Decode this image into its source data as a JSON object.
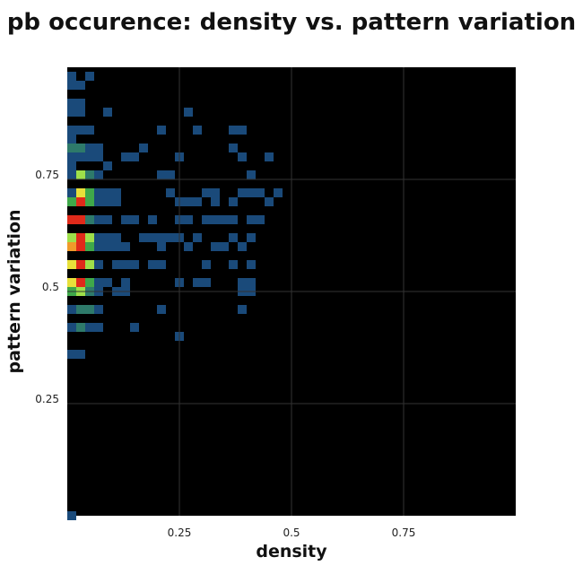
{
  "chart_data": {
    "type": "heatmap",
    "title": "pb occurence: density vs. pattern variation",
    "xlabel": "density",
    "ylabel": "pattern variation",
    "xlim": [
      0,
      1
    ],
    "ylim": [
      0,
      1
    ],
    "x_ticks": [
      {
        "value": 0.25,
        "label": "0.25"
      },
      {
        "value": 0.5,
        "label": "0.5"
      },
      {
        "value": 0.75,
        "label": "0.75"
      }
    ],
    "y_ticks": [
      {
        "value": 0.25,
        "label": "0.25"
      },
      {
        "value": 0.5,
        "label": "0.5"
      },
      {
        "value": 0.75,
        "label": "0.75"
      }
    ],
    "grid": true,
    "bin_width": 0.02,
    "bin_height": 0.02,
    "background_color": "#000000",
    "color_scale": [
      "#0e2a5c",
      "#1a4a7a",
      "#2e7a6a",
      "#3fa84a",
      "#9ee04a",
      "#e8e03a",
      "#f09a2a",
      "#e02a1a"
    ],
    "cells": [
      {
        "x": 0.0,
        "y": 0.99,
        "v": 1
      },
      {
        "x": 0.04,
        "y": 0.99,
        "v": 1
      },
      {
        "x": 0.0,
        "y": 0.97,
        "v": 1
      },
      {
        "x": 0.02,
        "y": 0.97,
        "v": 1
      },
      {
        "x": 0.0,
        "y": 0.93,
        "v": 1
      },
      {
        "x": 0.02,
        "y": 0.93,
        "v": 1
      },
      {
        "x": 0.0,
        "y": 0.91,
        "v": 1
      },
      {
        "x": 0.02,
        "y": 0.91,
        "v": 1
      },
      {
        "x": 0.08,
        "y": 0.91,
        "v": 1
      },
      {
        "x": 0.26,
        "y": 0.91,
        "v": 1
      },
      {
        "x": 0.0,
        "y": 0.87,
        "v": 1
      },
      {
        "x": 0.02,
        "y": 0.87,
        "v": 1
      },
      {
        "x": 0.04,
        "y": 0.87,
        "v": 1
      },
      {
        "x": 0.2,
        "y": 0.87,
        "v": 1
      },
      {
        "x": 0.28,
        "y": 0.87,
        "v": 1
      },
      {
        "x": 0.36,
        "y": 0.87,
        "v": 1
      },
      {
        "x": 0.38,
        "y": 0.87,
        "v": 1
      },
      {
        "x": 0.0,
        "y": 0.85,
        "v": 1
      },
      {
        "x": 0.0,
        "y": 0.83,
        "v": 2
      },
      {
        "x": 0.02,
        "y": 0.83,
        "v": 2
      },
      {
        "x": 0.04,
        "y": 0.83,
        "v": 1
      },
      {
        "x": 0.06,
        "y": 0.83,
        "v": 1
      },
      {
        "x": 0.16,
        "y": 0.83,
        "v": 1
      },
      {
        "x": 0.36,
        "y": 0.83,
        "v": 1
      },
      {
        "x": 0.0,
        "y": 0.81,
        "v": 1
      },
      {
        "x": 0.02,
        "y": 0.81,
        "v": 1
      },
      {
        "x": 0.04,
        "y": 0.81,
        "v": 1
      },
      {
        "x": 0.06,
        "y": 0.81,
        "v": 1
      },
      {
        "x": 0.12,
        "y": 0.81,
        "v": 1
      },
      {
        "x": 0.14,
        "y": 0.81,
        "v": 1
      },
      {
        "x": 0.24,
        "y": 0.81,
        "v": 1
      },
      {
        "x": 0.38,
        "y": 0.81,
        "v": 1
      },
      {
        "x": 0.44,
        "y": 0.81,
        "v": 1
      },
      {
        "x": 0.0,
        "y": 0.79,
        "v": 1
      },
      {
        "x": 0.08,
        "y": 0.79,
        "v": 1
      },
      {
        "x": 0.0,
        "y": 0.77,
        "v": 1
      },
      {
        "x": 0.02,
        "y": 0.77,
        "v": 4
      },
      {
        "x": 0.04,
        "y": 0.77,
        "v": 2
      },
      {
        "x": 0.06,
        "y": 0.77,
        "v": 1
      },
      {
        "x": 0.2,
        "y": 0.77,
        "v": 1
      },
      {
        "x": 0.22,
        "y": 0.77,
        "v": 1
      },
      {
        "x": 0.4,
        "y": 0.77,
        "v": 1
      },
      {
        "x": 0.0,
        "y": 0.73,
        "v": 1
      },
      {
        "x": 0.02,
        "y": 0.73,
        "v": 5
      },
      {
        "x": 0.04,
        "y": 0.73,
        "v": 3
      },
      {
        "x": 0.06,
        "y": 0.73,
        "v": 1
      },
      {
        "x": 0.08,
        "y": 0.73,
        "v": 1
      },
      {
        "x": 0.1,
        "y": 0.73,
        "v": 1
      },
      {
        "x": 0.22,
        "y": 0.73,
        "v": 1
      },
      {
        "x": 0.3,
        "y": 0.73,
        "v": 1
      },
      {
        "x": 0.32,
        "y": 0.73,
        "v": 1
      },
      {
        "x": 0.38,
        "y": 0.73,
        "v": 1
      },
      {
        "x": 0.4,
        "y": 0.73,
        "v": 1
      },
      {
        "x": 0.42,
        "y": 0.73,
        "v": 1
      },
      {
        "x": 0.46,
        "y": 0.73,
        "v": 1
      },
      {
        "x": 0.0,
        "y": 0.71,
        "v": 3
      },
      {
        "x": 0.02,
        "y": 0.71,
        "v": 7
      },
      {
        "x": 0.04,
        "y": 0.71,
        "v": 3
      },
      {
        "x": 0.06,
        "y": 0.71,
        "v": 1
      },
      {
        "x": 0.08,
        "y": 0.71,
        "v": 1
      },
      {
        "x": 0.1,
        "y": 0.71,
        "v": 1
      },
      {
        "x": 0.24,
        "y": 0.71,
        "v": 1
      },
      {
        "x": 0.26,
        "y": 0.71,
        "v": 1
      },
      {
        "x": 0.28,
        "y": 0.71,
        "v": 1
      },
      {
        "x": 0.32,
        "y": 0.71,
        "v": 1
      },
      {
        "x": 0.36,
        "y": 0.71,
        "v": 1
      },
      {
        "x": 0.44,
        "y": 0.71,
        "v": 1
      },
      {
        "x": 0.0,
        "y": 0.67,
        "v": 7
      },
      {
        "x": 0.02,
        "y": 0.67,
        "v": 7
      },
      {
        "x": 0.04,
        "y": 0.67,
        "v": 2
      },
      {
        "x": 0.06,
        "y": 0.67,
        "v": 1
      },
      {
        "x": 0.08,
        "y": 0.67,
        "v": 1
      },
      {
        "x": 0.12,
        "y": 0.67,
        "v": 1
      },
      {
        "x": 0.14,
        "y": 0.67,
        "v": 1
      },
      {
        "x": 0.18,
        "y": 0.67,
        "v": 1
      },
      {
        "x": 0.24,
        "y": 0.67,
        "v": 1
      },
      {
        "x": 0.26,
        "y": 0.67,
        "v": 1
      },
      {
        "x": 0.3,
        "y": 0.67,
        "v": 1
      },
      {
        "x": 0.32,
        "y": 0.67,
        "v": 1
      },
      {
        "x": 0.34,
        "y": 0.67,
        "v": 1
      },
      {
        "x": 0.36,
        "y": 0.67,
        "v": 1
      },
      {
        "x": 0.4,
        "y": 0.67,
        "v": 1
      },
      {
        "x": 0.42,
        "y": 0.67,
        "v": 1
      },
      {
        "x": 0.0,
        "y": 0.63,
        "v": 4
      },
      {
        "x": 0.02,
        "y": 0.63,
        "v": 7
      },
      {
        "x": 0.04,
        "y": 0.63,
        "v": 4
      },
      {
        "x": 0.06,
        "y": 0.63,
        "v": 1
      },
      {
        "x": 0.08,
        "y": 0.63,
        "v": 1
      },
      {
        "x": 0.1,
        "y": 0.63,
        "v": 1
      },
      {
        "x": 0.16,
        "y": 0.63,
        "v": 1
      },
      {
        "x": 0.18,
        "y": 0.63,
        "v": 1
      },
      {
        "x": 0.2,
        "y": 0.63,
        "v": 1
      },
      {
        "x": 0.22,
        "y": 0.63,
        "v": 1
      },
      {
        "x": 0.24,
        "y": 0.63,
        "v": 1
      },
      {
        "x": 0.28,
        "y": 0.63,
        "v": 1
      },
      {
        "x": 0.36,
        "y": 0.63,
        "v": 1
      },
      {
        "x": 0.4,
        "y": 0.63,
        "v": 1
      },
      {
        "x": 0.0,
        "y": 0.61,
        "v": 6
      },
      {
        "x": 0.02,
        "y": 0.61,
        "v": 7
      },
      {
        "x": 0.04,
        "y": 0.61,
        "v": 3
      },
      {
        "x": 0.06,
        "y": 0.61,
        "v": 1
      },
      {
        "x": 0.08,
        "y": 0.61,
        "v": 1
      },
      {
        "x": 0.1,
        "y": 0.61,
        "v": 1
      },
      {
        "x": 0.12,
        "y": 0.61,
        "v": 1
      },
      {
        "x": 0.2,
        "y": 0.61,
        "v": 1
      },
      {
        "x": 0.26,
        "y": 0.61,
        "v": 1
      },
      {
        "x": 0.32,
        "y": 0.61,
        "v": 1
      },
      {
        "x": 0.34,
        "y": 0.61,
        "v": 1
      },
      {
        "x": 0.38,
        "y": 0.61,
        "v": 1
      },
      {
        "x": 0.0,
        "y": 0.57,
        "v": 5
      },
      {
        "x": 0.02,
        "y": 0.57,
        "v": 7
      },
      {
        "x": 0.04,
        "y": 0.57,
        "v": 4
      },
      {
        "x": 0.06,
        "y": 0.57,
        "v": 1
      },
      {
        "x": 0.1,
        "y": 0.57,
        "v": 1
      },
      {
        "x": 0.12,
        "y": 0.57,
        "v": 1
      },
      {
        "x": 0.14,
        "y": 0.57,
        "v": 1
      },
      {
        "x": 0.18,
        "y": 0.57,
        "v": 1
      },
      {
        "x": 0.2,
        "y": 0.57,
        "v": 1
      },
      {
        "x": 0.3,
        "y": 0.57,
        "v": 1
      },
      {
        "x": 0.36,
        "y": 0.57,
        "v": 1
      },
      {
        "x": 0.4,
        "y": 0.57,
        "v": 1
      },
      {
        "x": 0.0,
        "y": 0.53,
        "v": 5
      },
      {
        "x": 0.02,
        "y": 0.53,
        "v": 7
      },
      {
        "x": 0.04,
        "y": 0.53,
        "v": 3
      },
      {
        "x": 0.06,
        "y": 0.53,
        "v": 1
      },
      {
        "x": 0.08,
        "y": 0.53,
        "v": 1
      },
      {
        "x": 0.12,
        "y": 0.53,
        "v": 1
      },
      {
        "x": 0.24,
        "y": 0.53,
        "v": 1
      },
      {
        "x": 0.28,
        "y": 0.53,
        "v": 1
      },
      {
        "x": 0.3,
        "y": 0.53,
        "v": 1
      },
      {
        "x": 0.38,
        "y": 0.53,
        "v": 1
      },
      {
        "x": 0.4,
        "y": 0.53,
        "v": 1
      },
      {
        "x": 0.0,
        "y": 0.51,
        "v": 3
      },
      {
        "x": 0.02,
        "y": 0.51,
        "v": 4
      },
      {
        "x": 0.04,
        "y": 0.51,
        "v": 2
      },
      {
        "x": 0.06,
        "y": 0.51,
        "v": 1
      },
      {
        "x": 0.1,
        "y": 0.51,
        "v": 1
      },
      {
        "x": 0.12,
        "y": 0.51,
        "v": 1
      },
      {
        "x": 0.38,
        "y": 0.51,
        "v": 1
      },
      {
        "x": 0.4,
        "y": 0.51,
        "v": 1
      },
      {
        "x": 0.0,
        "y": 0.47,
        "v": 1
      },
      {
        "x": 0.02,
        "y": 0.47,
        "v": 2
      },
      {
        "x": 0.04,
        "y": 0.47,
        "v": 2
      },
      {
        "x": 0.06,
        "y": 0.47,
        "v": 1
      },
      {
        "x": 0.2,
        "y": 0.47,
        "v": 1
      },
      {
        "x": 0.38,
        "y": 0.47,
        "v": 1
      },
      {
        "x": 0.0,
        "y": 0.43,
        "v": 1
      },
      {
        "x": 0.02,
        "y": 0.43,
        "v": 2
      },
      {
        "x": 0.04,
        "y": 0.43,
        "v": 1
      },
      {
        "x": 0.06,
        "y": 0.43,
        "v": 1
      },
      {
        "x": 0.14,
        "y": 0.43,
        "v": 1
      },
      {
        "x": 0.24,
        "y": 0.41,
        "v": 1
      },
      {
        "x": 0.0,
        "y": 0.37,
        "v": 1
      },
      {
        "x": 0.02,
        "y": 0.37,
        "v": 1
      },
      {
        "x": 0.0,
        "y": 0.01,
        "v": 1
      }
    ]
  }
}
